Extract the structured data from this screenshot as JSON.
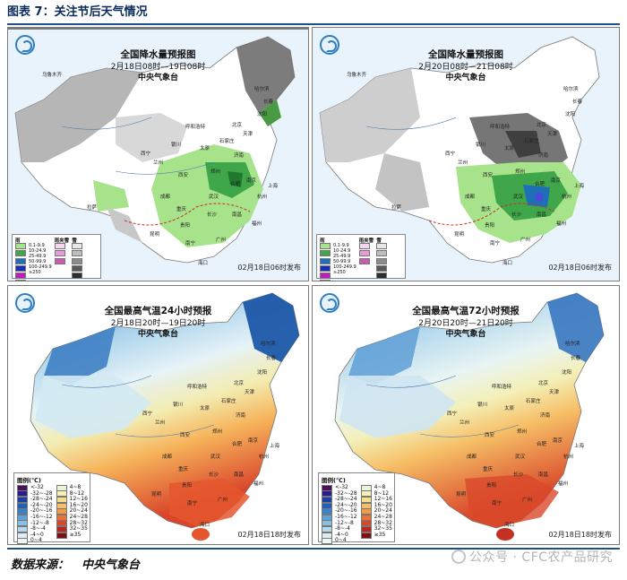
{
  "figure": {
    "title": "图表 7：关注节后天气情况",
    "source_label": "数据来源：",
    "source_value": "中央气象台",
    "watermark": "公众号 · CFC农产品研究"
  },
  "agency": "中央气象台",
  "colors": {
    "rule": "#1f4e8c",
    "rain_light": "#a6e38a",
    "rain_moderate": "#3fa64a",
    "rain_heavy": "#1d6fb8",
    "snow_light": "#d0d0d0",
    "snow_moderate": "#9a9a9a",
    "snow_heavy": "#555555",
    "warm": "#e2562c",
    "cold": "#1f5fae"
  },
  "panels": [
    {
      "id": "precip-24h",
      "title": "全国降水量预报图",
      "period": "2月18日08时—19日08时",
      "issued": "02月18日06时发布",
      "type": "precipitation",
      "legend": {
        "title_rain": "雨",
        "title_mix": "雨夹雪",
        "title_snow": "雪",
        "rows": [
          "0.1-9.9",
          "10-24.9",
          "25-49.9",
          "50-99.9",
          "100-249.9",
          "≥250"
        ]
      },
      "cities": [
        "乌鲁木齐",
        "哈尔滨",
        "长春",
        "沈阳",
        "北京",
        "天津",
        "呼和浩特",
        "石家庄",
        "太原",
        "济南",
        "银川",
        "西宁",
        "兰州",
        "郑州",
        "西安",
        "合肥",
        "南京",
        "上海",
        "成都",
        "武汉",
        "杭州",
        "拉萨",
        "重庆",
        "长沙",
        "南昌",
        "福州",
        "贵阳",
        "昆明",
        "南宁",
        "广州",
        "海口"
      ]
    },
    {
      "id": "precip-72h",
      "title": "全国降水量预报图",
      "period": "2月20日08时—21日08时",
      "issued": "02月18日06时发布",
      "type": "precipitation",
      "legend": {
        "title_rain": "雨",
        "title_mix": "雨夹雪",
        "title_snow": "雪",
        "rows": [
          "0.1-9.9",
          "10-24.9",
          "25-49.9",
          "50-99.9",
          "100-249.9",
          "≥250"
        ]
      },
      "cities": [
        "乌鲁木齐",
        "哈尔滨",
        "长春",
        "沈阳",
        "北京",
        "天津",
        "呼和浩特",
        "石家庄",
        "太原",
        "济南",
        "银川",
        "西宁",
        "兰州",
        "郑州",
        "西安",
        "合肥",
        "南京",
        "上海",
        "成都",
        "武汉",
        "杭州",
        "拉萨",
        "重庆",
        "长沙",
        "南昌",
        "福州",
        "贵阳",
        "昆明",
        "南宁",
        "广州",
        "海口"
      ]
    },
    {
      "id": "tmax-24h",
      "title": "全国最高气温24小时预报",
      "period": "2月18日20时—19日20时",
      "issued": "02月18日18时发布",
      "type": "temperature",
      "legend": {
        "title": "图例(℃)",
        "rows": [
          "<-32",
          "-32~-28",
          "-28~-24",
          "-24~-20",
          "-20~-16",
          "-16~-12",
          "-12~-8",
          "-8~-4",
          "-4~0",
          "0~4",
          "4~8",
          "8~12",
          "12~16",
          "16~20",
          "20~24",
          "24~28",
          "28~32",
          "32~35",
          "≥35"
        ]
      },
      "cities": [
        "哈尔滨",
        "长春",
        "沈阳",
        "北京",
        "天津",
        "呼和浩特",
        "石家庄",
        "太原",
        "济南",
        "银川",
        "西宁",
        "兰州",
        "郑州",
        "西安",
        "合肥",
        "南京",
        "上海",
        "成都",
        "武汉",
        "杭州",
        "重庆",
        "长沙",
        "南昌",
        "福州",
        "贵阳",
        "昆明",
        "南宁",
        "广州",
        "海口"
      ]
    },
    {
      "id": "tmax-72h",
      "title": "全国最高气温72小时预报",
      "period": "2月20日20时—21日20时",
      "issued": "02月18日18时发布",
      "type": "temperature",
      "legend": {
        "title": "图例(℃)",
        "rows": [
          "<-32",
          "-32~-28",
          "-28~-24",
          "-24~-20",
          "-20~-16",
          "-16~-12",
          "-12~-8",
          "-8~-4",
          "-4~0",
          "0~4",
          "4~8",
          "8~12",
          "12~16",
          "16~20",
          "20~24",
          "24~28",
          "28~32",
          "32~35",
          "≥35"
        ]
      },
      "cities": [
        "哈尔滨",
        "长春",
        "沈阳",
        "北京",
        "天津",
        "呼和浩特",
        "石家庄",
        "太原",
        "济南",
        "银川",
        "西宁",
        "兰州",
        "郑州",
        "西安",
        "合肥",
        "南京",
        "上海",
        "成都",
        "武汉",
        "杭州",
        "重庆",
        "长沙",
        "南昌",
        "福州",
        "贵阳",
        "昆明",
        "南宁",
        "广州",
        "海口"
      ]
    }
  ]
}
